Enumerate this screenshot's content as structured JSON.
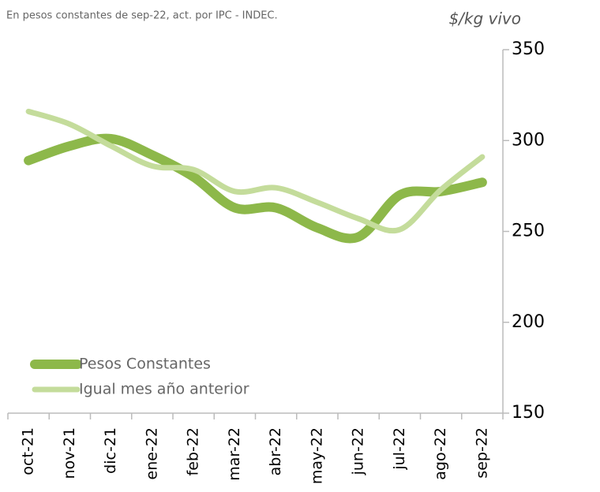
{
  "chart_data": {
    "type": "line",
    "subtitle": "En pesos constantes de sep-22, act. por IPC - INDEC.",
    "y_axis_label": "$/kg  vivo",
    "categories": [
      "oct-21",
      "nov-21",
      "dic-21",
      "ene-22",
      "feb-22",
      "mar-22",
      "abr-22",
      "may-22",
      "jun-22",
      "jul-22",
      "ago-22",
      "sep-22"
    ],
    "series": [
      {
        "name": "Pesos Constantes",
        "color": "#8db84a",
        "values": [
          289,
          297,
          301,
          292,
          280,
          263,
          263,
          252,
          247,
          270,
          272,
          277
        ]
      },
      {
        "name": "Igual mes año anterior",
        "color": "#c4dc9b",
        "values": [
          316,
          309,
          297,
          286,
          284,
          272,
          274,
          266,
          257,
          251,
          273,
          291
        ]
      }
    ],
    "ylim": [
      150,
      350
    ],
    "yticks": [
      150,
      200,
      250,
      300,
      350
    ],
    "legend": "lower left"
  }
}
